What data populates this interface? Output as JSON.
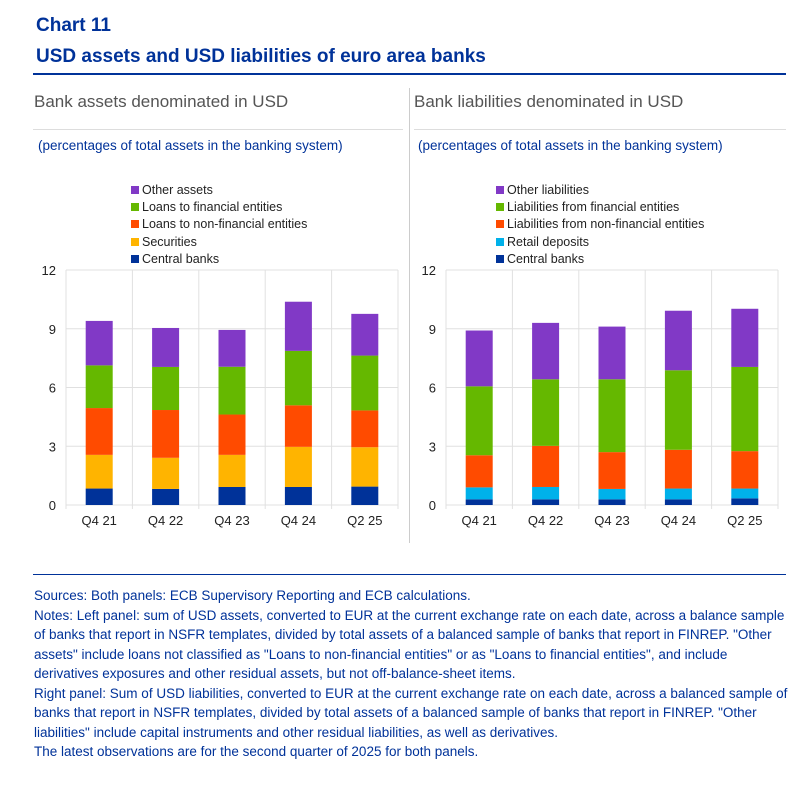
{
  "title": "Chart 11",
  "subtitle": "USD assets and USD liabilities of euro area banks",
  "sources": "Sources: Both panels: ECB Supervisory Reporting and ECB calculations.",
  "notes": "Notes: Left panel: sum of USD assets, converted to EUR at the current exchange rate on each date, across a balance sample of banks that report in NSFR templates, divided by total assets of a balanced sample of banks that report in FINREP. \"Other assets\" include loans not classified as \"Loans to non-financial entities\" or as \"Loans to financial entities\", and include derivatives exposures and other residual assets, but not off-balance-sheet items.",
  "notes_right": "Right panel: Sum of USD liabilities, converted to EUR at the current exchange rate on each date, across a balanced sample of banks that report in NSFR templates, divided by total assets of a balanced sample of banks that report in FINREP. \"Other liabilities\" include capital instruments and other residual liabilities, as well as derivatives.",
  "notes_latest": "The latest observations are for the second quarter of 2025 for both panels.",
  "chart_data": [
    {
      "type": "bar",
      "stacked": true,
      "title": "Bank assets denominated in USD",
      "unit_label": "(percentages of total assets in the banking system)",
      "categories": [
        "Q4 21",
        "Q4 22",
        "Q4 23",
        "Q4 24",
        "Q2 25"
      ],
      "ylim": [
        0,
        12
      ],
      "yticks": [
        "0",
        "3",
        "6",
        "9",
        "12"
      ],
      "grid": true,
      "legend": "top",
      "series": [
        {
          "name": "Central banks",
          "color": "#003299",
          "values": [
            0.84,
            0.82,
            0.92,
            0.92,
            0.94
          ]
        },
        {
          "name": "Securities",
          "color": "#ffb400",
          "values": [
            1.72,
            1.59,
            1.64,
            2.05,
            2.01
          ]
        },
        {
          "name": "Loans to non-financial entities",
          "color": "#ff4b00",
          "values": [
            2.39,
            2.44,
            2.06,
            2.12,
            1.88
          ]
        },
        {
          "name": "Loans to financial entities",
          "color": "#65b800",
          "values": [
            2.18,
            2.2,
            2.44,
            2.78,
            2.8
          ]
        },
        {
          "name": "Other assets",
          "color": "#8139c6",
          "values": [
            2.27,
            1.99,
            1.88,
            2.51,
            2.13
          ]
        }
      ]
    },
    {
      "type": "bar",
      "stacked": true,
      "title": "Bank liabilities denominated in USD",
      "unit_label": "(percentages of total assets in the banking system)",
      "categories": [
        "Q4 21",
        "Q4 22",
        "Q4 23",
        "Q4 24",
        "Q2 25"
      ],
      "ylim": [
        0,
        12
      ],
      "yticks": [
        "0",
        "3",
        "6",
        "9",
        "12"
      ],
      "grid": true,
      "legend": "top",
      "series": [
        {
          "name": "Central banks",
          "color": "#003299",
          "values": [
            0.29,
            0.29,
            0.29,
            0.29,
            0.34
          ]
        },
        {
          "name": "Retail deposits",
          "color": "#00b1ea",
          "values": [
            0.61,
            0.63,
            0.53,
            0.55,
            0.5
          ]
        },
        {
          "name": "Liabilities from non-financial entities",
          "color": "#ff4b00",
          "values": [
            1.64,
            2.1,
            1.88,
            1.98,
            1.91
          ]
        },
        {
          "name": "Liabilities from financial entities",
          "color": "#65b800",
          "values": [
            3.52,
            3.4,
            3.72,
            4.06,
            4.3
          ]
        },
        {
          "name": "Other liabilities",
          "color": "#8139c6",
          "values": [
            2.85,
            2.88,
            2.69,
            3.04,
            2.97
          ]
        }
      ]
    }
  ]
}
